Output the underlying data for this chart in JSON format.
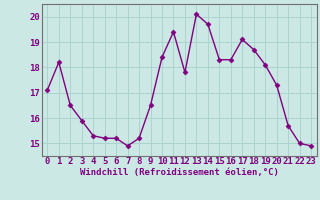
{
  "x": [
    0,
    1,
    2,
    3,
    4,
    5,
    6,
    7,
    8,
    9,
    10,
    11,
    12,
    13,
    14,
    15,
    16,
    17,
    18,
    19,
    20,
    21,
    22,
    23
  ],
  "y": [
    17.1,
    18.2,
    16.5,
    15.9,
    15.3,
    15.2,
    15.2,
    14.9,
    15.2,
    16.5,
    18.4,
    19.4,
    17.8,
    20.1,
    19.7,
    18.3,
    18.3,
    19.1,
    18.7,
    18.1,
    17.3,
    15.7,
    15.0,
    14.9
  ],
  "line_color": "#800080",
  "marker": "D",
  "marker_size": 2.5,
  "bg_color": "#cce8e4",
  "grid_color": "#aad4cf",
  "xlabel": "Windchill (Refroidissement éolien,°C)",
  "ylim": [
    14.5,
    20.5
  ],
  "yticks": [
    15,
    16,
    17,
    18,
    19,
    20
  ],
  "xticks": [
    0,
    1,
    2,
    3,
    4,
    5,
    6,
    7,
    8,
    9,
    10,
    11,
    12,
    13,
    14,
    15,
    16,
    17,
    18,
    19,
    20,
    21,
    22,
    23
  ],
  "tick_label_color": "#800080",
  "xlabel_color": "#800080",
  "xlabel_fontsize": 6.5,
  "tick_fontsize": 6.5,
  "linewidth": 1.0
}
